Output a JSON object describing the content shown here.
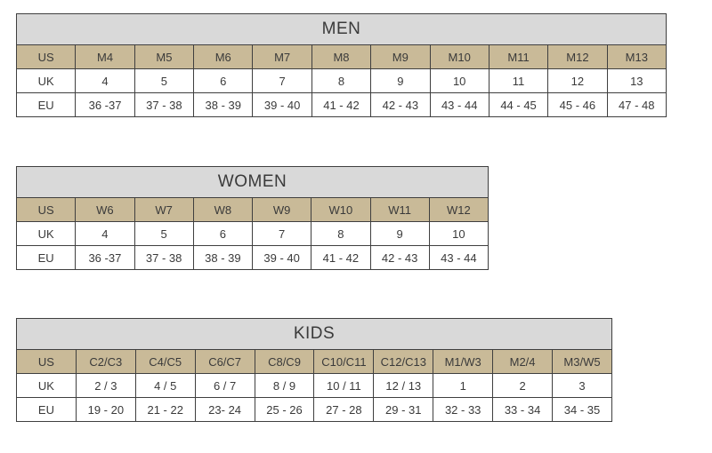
{
  "colors": {
    "page_bg": "#ffffff",
    "title_row_bg": "#d9d9d9",
    "header_row_bg": "#c9ba98",
    "border": "#3f3f3f",
    "text": "#3a3a3a"
  },
  "tables": [
    {
      "name": "men",
      "title": "MEN",
      "rows": [
        {
          "label": "US",
          "cells": [
            "M4",
            "M5",
            "M6",
            "M7",
            "M8",
            "M9",
            "M10",
            "M11",
            "M12",
            "M13"
          ]
        },
        {
          "label": "UK",
          "cells": [
            "4",
            "5",
            "6",
            "7",
            "8",
            "9",
            "10",
            "11",
            "12",
            "13"
          ]
        },
        {
          "label": "EU",
          "cells": [
            "36 -37",
            "37 - 38",
            "38 - 39",
            "39 - 40",
            "41 - 42",
            "42 - 43",
            "43 - 44",
            "44 - 45",
            "45 - 46",
            "47 - 48"
          ]
        }
      ]
    },
    {
      "name": "women",
      "title": "WOMEN",
      "rows": [
        {
          "label": "US",
          "cells": [
            "W6",
            "W7",
            "W8",
            "W9",
            "W10",
            "W11",
            "W12"
          ]
        },
        {
          "label": "UK",
          "cells": [
            "4",
            "5",
            "6",
            "7",
            "8",
            "9",
            "10"
          ]
        },
        {
          "label": "EU",
          "cells": [
            "36 -37",
            "37 - 38",
            "38 - 39",
            "39 - 40",
            "41 - 42",
            "42 - 43",
            "43 - 44"
          ]
        }
      ]
    },
    {
      "name": "kids",
      "title": "KIDS",
      "rows": [
        {
          "label": "US",
          "cells": [
            "C2/C3",
            "C4/C5",
            "C6/C7",
            "C8/C9",
            "C10/C11",
            "C12/C13",
            "M1/W3",
            "M2/4",
            "M3/W5"
          ]
        },
        {
          "label": "UK",
          "cells": [
            "2 / 3",
            "4 / 5",
            "6 / 7",
            "8 / 9",
            "10 / 11",
            "12 / 13",
            "1",
            "2",
            "3"
          ]
        },
        {
          "label": "EU",
          "cells": [
            "19 - 20",
            "21 - 22",
            "23- 24",
            "25 - 26",
            "27 - 28",
            "29 - 31",
            "32 - 33",
            "33 - 34",
            "34 - 35"
          ]
        }
      ]
    }
  ]
}
